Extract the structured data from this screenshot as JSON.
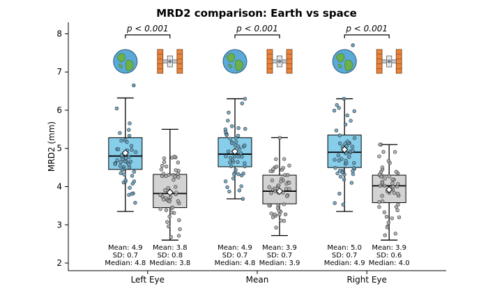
{
  "chart_data": {
    "type": "box",
    "title": "MRD2 comparison: Earth vs space",
    "ylabel": "MRD2 (mm)",
    "xlabel": "",
    "ylim": [
      1.8,
      8.3
    ],
    "yticks": [
      2,
      3,
      4,
      5,
      6,
      7,
      8
    ],
    "grid": false,
    "categories": [
      "Left Eye",
      "Mean",
      "Right Eye"
    ],
    "series_icons": [
      "earth-icon",
      "space-station-icon"
    ],
    "colors": {
      "earth": "#87ceeb",
      "space": "#d3d3d3",
      "earth_point": "#5f9fbf",
      "space_point": "#a9a9a9"
    },
    "groups": [
      {
        "category": "Left Eye",
        "p_value": "p < 0.001",
        "boxes": [
          {
            "condition": "earth",
            "whisker_low": 3.35,
            "q1": 4.45,
            "median": 4.8,
            "q3": 5.28,
            "whisker_high": 6.32,
            "mean": 4.88,
            "outliers": [
              6.65
            ],
            "stats": {
              "mean": "Mean: 4.9",
              "sd": "SD: 0.7",
              "median": "Median: 4.8"
            }
          },
          {
            "condition": "space",
            "whisker_low": 2.6,
            "q1": 3.45,
            "median": 3.82,
            "q3": 4.32,
            "whisker_high": 5.5,
            "mean": 3.85,
            "outliers": [],
            "stats": {
              "mean": "Mean: 3.8",
              "sd": "SD: 0.8",
              "median": "Median: 3.8"
            }
          }
        ]
      },
      {
        "category": "Mean",
        "p_value": "p < 0.001",
        "boxes": [
          {
            "condition": "earth",
            "whisker_low": 3.68,
            "q1": 4.52,
            "median": 4.85,
            "q3": 5.28,
            "whisker_high": 6.3,
            "mean": 4.92,
            "outliers": [],
            "stats": {
              "mean": "Mean: 4.9",
              "sd": "SD: 0.7",
              "median": "Median: 4.8"
            }
          },
          {
            "condition": "space",
            "whisker_low": 2.72,
            "q1": 3.55,
            "median": 3.88,
            "q3": 4.3,
            "whisker_high": 5.28,
            "mean": 3.88,
            "outliers": [],
            "stats": {
              "mean": "Mean: 3.9",
              "sd": "SD: 0.7",
              "median": "Median: 3.9"
            }
          }
        ]
      },
      {
        "category": "Right Eye",
        "p_value": "p < 0.001",
        "boxes": [
          {
            "condition": "earth",
            "whisker_low": 3.35,
            "q1": 4.5,
            "median": 4.9,
            "q3": 5.35,
            "whisker_high": 6.3,
            "mean": 4.97,
            "outliers": [
              7.7
            ],
            "stats": {
              "mean": "Mean: 5.0",
              "sd": "SD: 0.7",
              "median": "Median: 4.9"
            }
          },
          {
            "condition": "space",
            "whisker_low": 2.6,
            "q1": 3.58,
            "median": 4.02,
            "q3": 4.3,
            "whisker_high": 5.1,
            "mean": 3.92,
            "outliers": [],
            "stats": {
              "mean": "Mean: 3.9",
              "sd": "SD: 0.6",
              "median": "Median: 4.0"
            }
          }
        ]
      }
    ]
  }
}
